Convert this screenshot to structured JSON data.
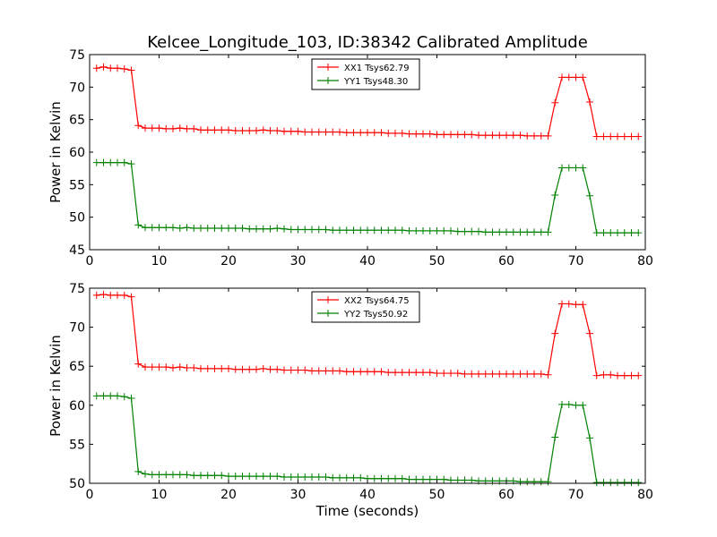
{
  "chart_data": [
    {
      "type": "line",
      "title": "Kelcee_Longitude_103, ID:38342 Calibrated Amplitude",
      "xlabel": "",
      "ylabel": "Power in Kelvin",
      "xlim": [
        0,
        80
      ],
      "ylim": [
        45,
        75
      ],
      "xticks": [
        0,
        10,
        20,
        30,
        40,
        50,
        60,
        70,
        80
      ],
      "yticks": [
        45,
        50,
        55,
        60,
        65,
        70,
        75
      ],
      "grid": false,
      "legend_position": "top-center",
      "marker": "+",
      "series": [
        {
          "name": "XX1 Tsys62.79",
          "color": "#ff0000",
          "x": [
            1,
            2,
            3,
            4,
            5,
            6,
            7,
            8,
            9,
            10,
            11,
            12,
            13,
            14,
            15,
            16,
            17,
            18,
            19,
            20,
            21,
            22,
            23,
            24,
            25,
            26,
            27,
            28,
            29,
            30,
            31,
            32,
            33,
            34,
            35,
            36,
            37,
            38,
            39,
            40,
            41,
            42,
            43,
            44,
            45,
            46,
            47,
            48,
            49,
            50,
            51,
            52,
            53,
            54,
            55,
            56,
            57,
            58,
            59,
            60,
            61,
            62,
            63,
            64,
            65,
            66,
            67,
            68,
            69,
            70,
            71,
            72,
            73,
            74,
            75,
            76,
            77,
            78,
            79
          ],
          "y": [
            72.9,
            73.1,
            72.9,
            72.9,
            72.8,
            72.6,
            64.1,
            63.7,
            63.7,
            63.7,
            63.6,
            63.6,
            63.7,
            63.6,
            63.6,
            63.4,
            63.4,
            63.4,
            63.4,
            63.4,
            63.3,
            63.3,
            63.3,
            63.3,
            63.4,
            63.3,
            63.3,
            63.2,
            63.2,
            63.2,
            63.1,
            63.1,
            63.1,
            63.1,
            63.1,
            63.1,
            63.0,
            63.0,
            63.0,
            63.0,
            63.0,
            63.0,
            62.9,
            62.9,
            62.9,
            62.8,
            62.8,
            62.8,
            62.8,
            62.7,
            62.7,
            62.7,
            62.7,
            62.7,
            62.7,
            62.6,
            62.6,
            62.6,
            62.6,
            62.6,
            62.6,
            62.6,
            62.5,
            62.5,
            62.5,
            62.5,
            67.6,
            71.5,
            71.5,
            71.5,
            71.5,
            67.7,
            62.4,
            62.4,
            62.4,
            62.4,
            62.4,
            62.4,
            62.4
          ]
        },
        {
          "name": "YY1 Tsys48.30",
          "color": "#008000",
          "x": [
            1,
            2,
            3,
            4,
            5,
            6,
            7,
            8,
            9,
            10,
            11,
            12,
            13,
            14,
            15,
            16,
            17,
            18,
            19,
            20,
            21,
            22,
            23,
            24,
            25,
            26,
            27,
            28,
            29,
            30,
            31,
            32,
            33,
            34,
            35,
            36,
            37,
            38,
            39,
            40,
            41,
            42,
            43,
            44,
            45,
            46,
            47,
            48,
            49,
            50,
            51,
            52,
            53,
            54,
            55,
            56,
            57,
            58,
            59,
            60,
            61,
            62,
            63,
            64,
            65,
            66,
            67,
            68,
            69,
            70,
            71,
            72,
            73,
            74,
            75,
            76,
            77,
            78,
            79
          ],
          "y": [
            58.4,
            58.4,
            58.4,
            58.4,
            58.4,
            58.2,
            48.8,
            48.4,
            48.4,
            48.4,
            48.4,
            48.4,
            48.3,
            48.4,
            48.3,
            48.3,
            48.3,
            48.3,
            48.3,
            48.3,
            48.3,
            48.3,
            48.2,
            48.2,
            48.2,
            48.2,
            48.3,
            48.2,
            48.1,
            48.1,
            48.1,
            48.1,
            48.1,
            48.1,
            48.0,
            48.0,
            48.0,
            48.0,
            48.0,
            48.0,
            48.0,
            48.0,
            48.0,
            48.0,
            48.0,
            47.9,
            47.9,
            47.9,
            47.9,
            47.9,
            47.9,
            47.9,
            47.8,
            47.8,
            47.8,
            47.8,
            47.7,
            47.7,
            47.7,
            47.7,
            47.7,
            47.7,
            47.7,
            47.7,
            47.7,
            47.7,
            53.4,
            57.6,
            57.6,
            57.6,
            57.6,
            53.3,
            47.6,
            47.6,
            47.6,
            47.6,
            47.6,
            47.6,
            47.6
          ]
        }
      ]
    },
    {
      "type": "line",
      "title": "",
      "xlabel": "Time (seconds)",
      "ylabel": "Power in Kelvin",
      "xlim": [
        0,
        80
      ],
      "ylim": [
        50,
        75
      ],
      "xticks": [
        0,
        10,
        20,
        30,
        40,
        50,
        60,
        70,
        80
      ],
      "yticks": [
        50,
        55,
        60,
        65,
        70,
        75
      ],
      "grid": false,
      "legend_position": "top-center",
      "marker": "+",
      "series": [
        {
          "name": "XX2 Tsys64.75",
          "color": "#ff0000",
          "x": [
            1,
            2,
            3,
            4,
            5,
            6,
            7,
            8,
            9,
            10,
            11,
            12,
            13,
            14,
            15,
            16,
            17,
            18,
            19,
            20,
            21,
            22,
            23,
            24,
            25,
            26,
            27,
            28,
            29,
            30,
            31,
            32,
            33,
            34,
            35,
            36,
            37,
            38,
            39,
            40,
            41,
            42,
            43,
            44,
            45,
            46,
            47,
            48,
            49,
            50,
            51,
            52,
            53,
            54,
            55,
            56,
            57,
            58,
            59,
            60,
            61,
            62,
            63,
            64,
            65,
            66,
            67,
            68,
            69,
            70,
            71,
            72,
            73,
            74,
            75,
            76,
            77,
            78,
            79
          ],
          "y": [
            74.1,
            74.2,
            74.1,
            74.1,
            74.1,
            73.9,
            65.3,
            64.9,
            64.9,
            64.9,
            64.9,
            64.8,
            64.9,
            64.8,
            64.8,
            64.7,
            64.7,
            64.7,
            64.7,
            64.7,
            64.6,
            64.6,
            64.6,
            64.6,
            64.7,
            64.6,
            64.6,
            64.5,
            64.5,
            64.5,
            64.5,
            64.4,
            64.4,
            64.4,
            64.4,
            64.4,
            64.3,
            64.3,
            64.3,
            64.3,
            64.3,
            64.3,
            64.2,
            64.2,
            64.2,
            64.2,
            64.2,
            64.2,
            64.2,
            64.1,
            64.1,
            64.1,
            64.1,
            64.0,
            64.0,
            64.0,
            64.0,
            64.0,
            64.0,
            64.0,
            64.0,
            64.0,
            64.0,
            64.0,
            64.0,
            63.9,
            69.2,
            73.0,
            73.0,
            72.9,
            72.9,
            69.2,
            63.8,
            63.9,
            63.9,
            63.8,
            63.8,
            63.8,
            63.8
          ]
        },
        {
          "name": "YY2 Tsys50.92",
          "color": "#008000",
          "x": [
            1,
            2,
            3,
            4,
            5,
            6,
            7,
            8,
            9,
            10,
            11,
            12,
            13,
            14,
            15,
            16,
            17,
            18,
            19,
            20,
            21,
            22,
            23,
            24,
            25,
            26,
            27,
            28,
            29,
            30,
            31,
            32,
            33,
            34,
            35,
            36,
            37,
            38,
            39,
            40,
            41,
            42,
            43,
            44,
            45,
            46,
            47,
            48,
            49,
            50,
            51,
            52,
            53,
            54,
            55,
            56,
            57,
            58,
            59,
            60,
            61,
            62,
            63,
            64,
            65,
            66,
            67,
            68,
            69,
            70,
            71,
            72,
            73,
            74,
            75,
            76,
            77,
            78,
            79
          ],
          "y": [
            61.2,
            61.2,
            61.2,
            61.2,
            61.1,
            60.9,
            51.5,
            51.2,
            51.1,
            51.1,
            51.1,
            51.1,
            51.1,
            51.1,
            51.0,
            51.0,
            51.0,
            51.0,
            51.0,
            50.9,
            50.9,
            50.9,
            50.9,
            50.9,
            50.9,
            50.9,
            50.9,
            50.8,
            50.8,
            50.8,
            50.8,
            50.8,
            50.8,
            50.8,
            50.7,
            50.7,
            50.7,
            50.7,
            50.7,
            50.6,
            50.6,
            50.6,
            50.6,
            50.6,
            50.6,
            50.5,
            50.5,
            50.5,
            50.5,
            50.5,
            50.5,
            50.4,
            50.4,
            50.4,
            50.4,
            50.3,
            50.3,
            50.3,
            50.3,
            50.3,
            50.3,
            50.2,
            50.2,
            50.2,
            50.2,
            50.2,
            55.9,
            60.1,
            60.1,
            60.0,
            60.0,
            55.8,
            50.1,
            50.1,
            50.1,
            50.1,
            50.1,
            50.1,
            50.1
          ]
        }
      ]
    }
  ]
}
